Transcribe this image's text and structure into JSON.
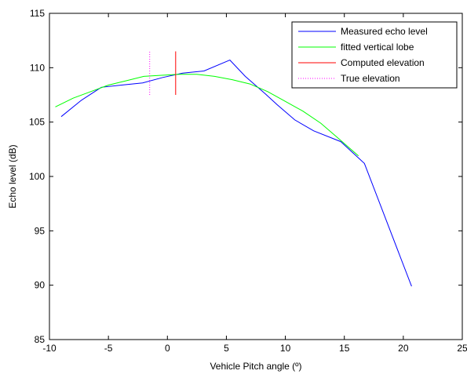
{
  "chart_data": {
    "type": "line",
    "title": "",
    "xlabel": "Vehicle Pitch angle (º)",
    "ylabel": "Echo level (dB)",
    "xlim": [
      -10,
      25
    ],
    "ylim": [
      85,
      115
    ],
    "xticks": [
      -10,
      -5,
      0,
      5,
      10,
      15,
      20,
      25
    ],
    "yticks": [
      85,
      90,
      95,
      100,
      105,
      110,
      115
    ],
    "xtick_labels": [
      "-10",
      "-5",
      "0",
      "5",
      "10",
      "15",
      "20",
      "25"
    ],
    "ytick_labels": [
      "85",
      "90",
      "95",
      "100",
      "105",
      "110",
      "115"
    ],
    "grid": false,
    "legend_position": "top-right",
    "series": [
      {
        "name": "Measured echo level",
        "color": "#0000ff",
        "style": "solid",
        "x": [
          -9,
          -7.3,
          -5.6,
          -3.9,
          -2.1,
          -0.4,
          1.3,
          3.1,
          5.3,
          6.6,
          8.3,
          9.3,
          10.8,
          12.4,
          14.7,
          16.7,
          20.7
        ],
        "y": [
          105.5,
          107,
          108.2,
          108.4,
          108.6,
          109.1,
          109.5,
          109.7,
          110.7,
          109.2,
          107.6,
          106.6,
          105.2,
          104.2,
          103.2,
          101.2,
          89.9
        ]
      },
      {
        "name": "fitted vertical lobe",
        "color": "#00ff00",
        "style": "solid",
        "x": [
          -9.5,
          -8,
          -6.5,
          -5,
          -3.5,
          -2,
          -0.5,
          1,
          2.5,
          4,
          5.5,
          7,
          8.5,
          10,
          11.5,
          13,
          14.5,
          16.2
        ],
        "y": [
          106.4,
          107.2,
          107.8,
          108.4,
          108.8,
          109.2,
          109.3,
          109.4,
          109.4,
          109.2,
          108.9,
          108.5,
          107.8,
          106.9,
          106,
          104.9,
          103.5,
          101.9
        ]
      },
      {
        "name": "Computed elevation",
        "color": "#ff0000",
        "style": "solid",
        "x": [
          0.7,
          0.7
        ],
        "y": [
          107.5,
          111.5
        ]
      },
      {
        "name": "True elevation",
        "color": "#ff00ff",
        "style": "dotted",
        "x": [
          -1.5,
          -1.5
        ],
        "y": [
          107.5,
          111.5
        ]
      }
    ]
  }
}
